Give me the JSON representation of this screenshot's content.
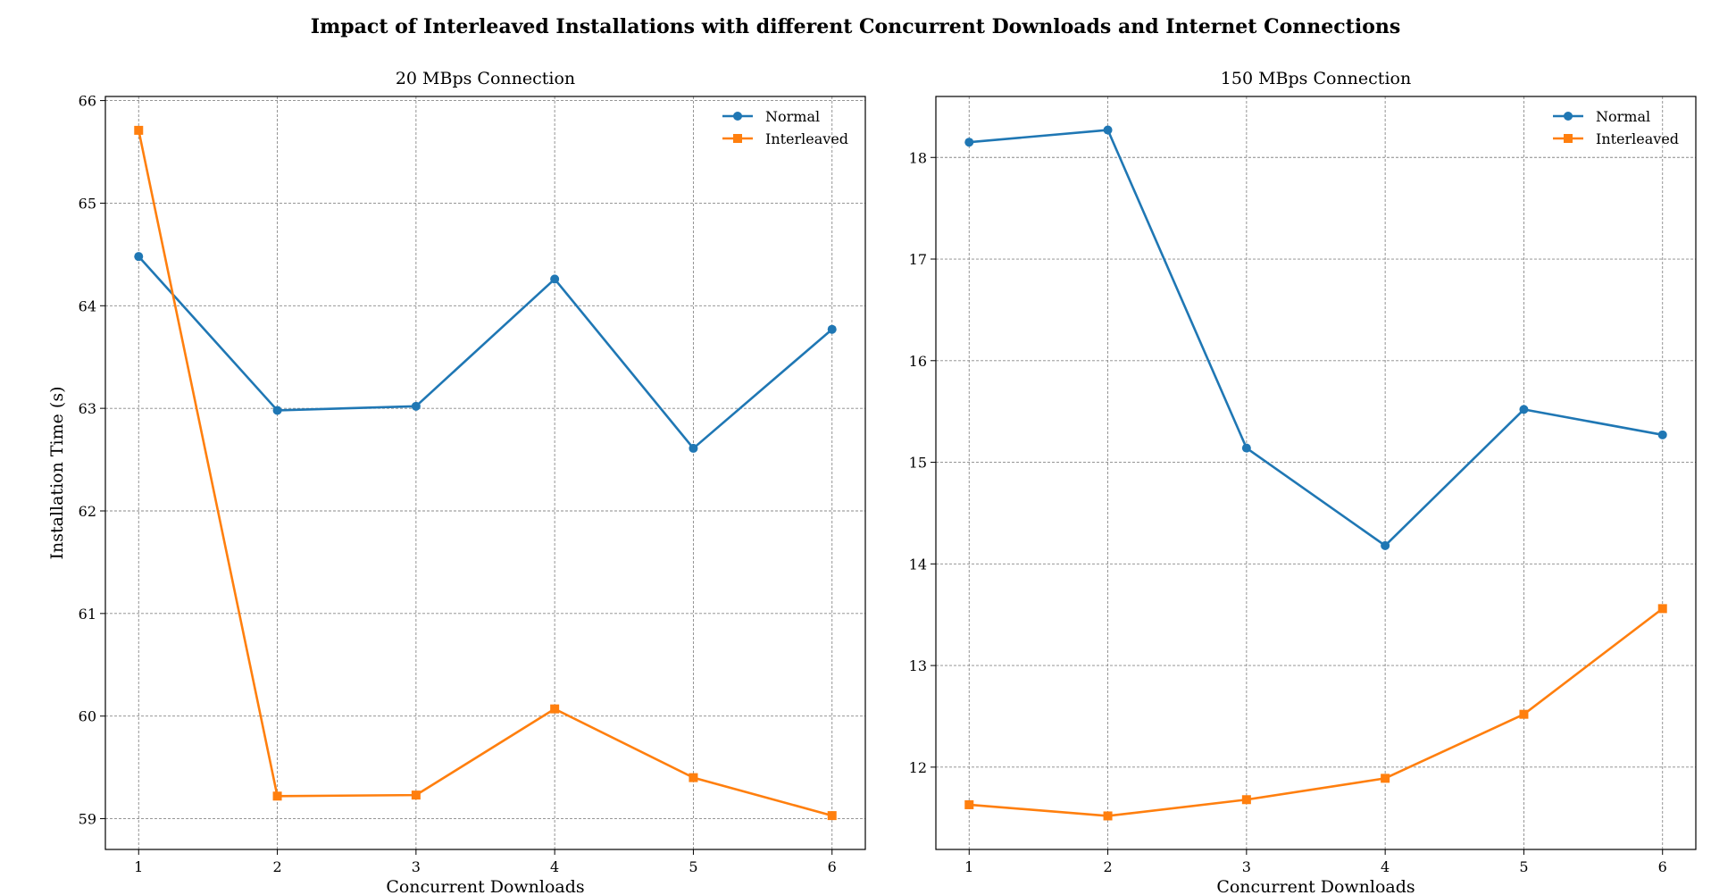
{
  "figure": {
    "title": "Impact of Interleaved Installations with different Concurrent Downloads and Internet Connections"
  },
  "chart_data": [
    {
      "type": "line",
      "title": "20 MBps Connection",
      "xlabel": "Concurrent Downloads",
      "ylabel": "Installation Time (s)",
      "x": [
        1,
        2,
        3,
        4,
        5,
        6
      ],
      "xlim": [
        0.76,
        6.24
      ],
      "ylim": [
        58.7,
        66.04
      ],
      "yticks": [
        59,
        60,
        61,
        62,
        63,
        64,
        65,
        66
      ],
      "grid": true,
      "legend": "top-right",
      "series": [
        {
          "name": "Normal",
          "marker": "circle",
          "color": "#1f77b4",
          "values": [
            64.48,
            62.98,
            63.02,
            64.26,
            62.61,
            63.77
          ]
        },
        {
          "name": "Interleaved",
          "marker": "square",
          "color": "#ff7f0e",
          "values": [
            65.71,
            59.22,
            59.23,
            60.07,
            59.4,
            59.03
          ]
        }
      ]
    },
    {
      "type": "line",
      "title": "150 MBps Connection",
      "xlabel": "Concurrent Downloads",
      "ylabel": "",
      "x": [
        1,
        2,
        3,
        4,
        5,
        6
      ],
      "xlim": [
        0.76,
        6.24
      ],
      "ylim": [
        11.19,
        18.6
      ],
      "yticks": [
        12,
        13,
        14,
        15,
        16,
        17,
        18
      ],
      "grid": true,
      "legend": "top-right",
      "series": [
        {
          "name": "Normal",
          "marker": "circle",
          "color": "#1f77b4",
          "values": [
            18.15,
            18.27,
            15.14,
            14.18,
            15.52,
            15.27
          ]
        },
        {
          "name": "Interleaved",
          "marker": "square",
          "color": "#ff7f0e",
          "values": [
            11.63,
            11.52,
            11.68,
            11.89,
            12.52,
            13.56
          ]
        }
      ]
    }
  ]
}
